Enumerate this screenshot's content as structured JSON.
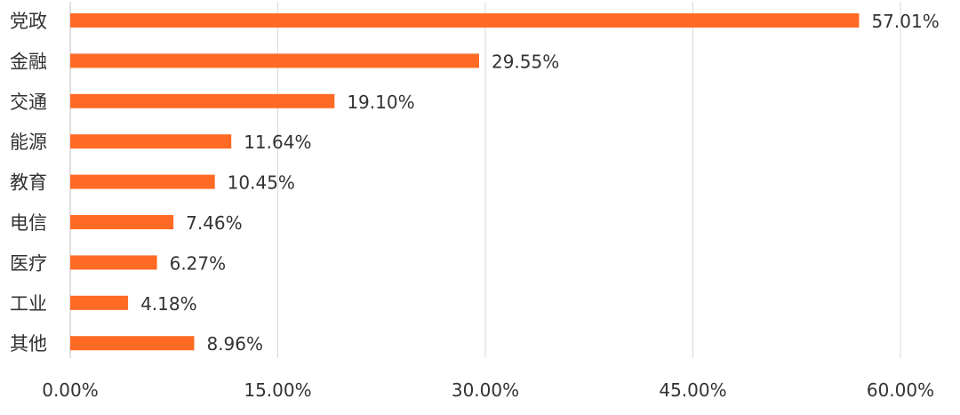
{
  "chart_data": {
    "type": "bar",
    "orientation": "horizontal",
    "title": "",
    "xlabel": "",
    "ylabel": "",
    "categories": [
      "党政",
      "金融",
      "交通",
      "能源",
      "教育",
      "电信",
      "医疗",
      "工业",
      "其他"
    ],
    "values": [
      57.01,
      29.55,
      19.1,
      11.64,
      10.45,
      7.46,
      6.27,
      4.18,
      8.96
    ],
    "value_labels": [
      "57.01%",
      "29.55%",
      "19.10%",
      "11.64%",
      "10.45%",
      "7.46%",
      "6.27%",
      "4.18%",
      "8.96%"
    ],
    "xlim": [
      0,
      60
    ],
    "x_ticks": [
      0,
      15,
      30,
      45,
      60
    ],
    "x_tick_labels": [
      "0.00%",
      "15.00%",
      "30.00%",
      "45.00%",
      "60.00%"
    ],
    "grid": "vertical",
    "legend": "none",
    "colors": {
      "bar": "#FF6A24",
      "grid": "#D9D9D9",
      "text": "#333333"
    }
  }
}
